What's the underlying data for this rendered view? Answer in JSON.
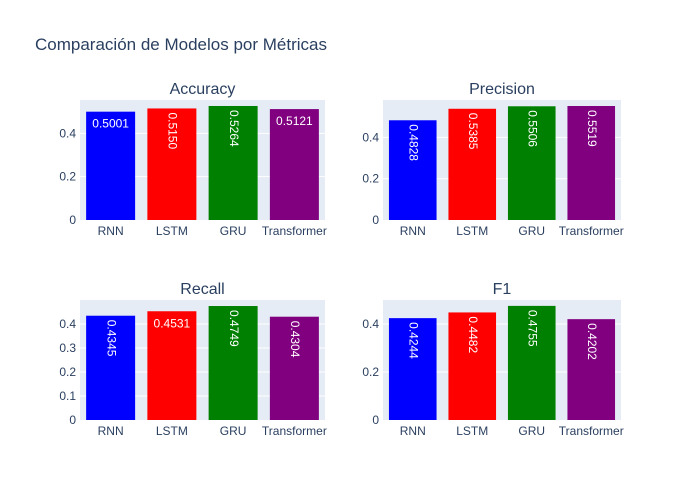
{
  "title": "Comparación de Modelos por Métricas",
  "colors": {
    "plot_bg": "#e5ecf6",
    "grid": "#ffffff",
    "text": "#2a3f5f",
    "bars": [
      "#0000ff",
      "#ff0000",
      "#008000",
      "#800080"
    ]
  },
  "chart_data": [
    {
      "type": "bar",
      "title": "Accuracy",
      "categories": [
        "RNN",
        "LSTM",
        "GRU",
        "Transformer"
      ],
      "values": [
        0.5001,
        0.515,
        0.5264,
        0.5121
      ],
      "labels": [
        "0.5001",
        "0.5150",
        "0.5264",
        "0.5121"
      ],
      "label_rotated": [
        false,
        true,
        true,
        false
      ],
      "yticks": [
        0,
        0.2,
        0.4
      ],
      "ytick_labels": [
        "0",
        "0.2",
        "0.4"
      ],
      "ylim": [
        0,
        0.554
      ]
    },
    {
      "type": "bar",
      "title": "Precision",
      "categories": [
        "RNN",
        "LSTM",
        "GRU",
        "Transformer"
      ],
      "values": [
        0.4828,
        0.5385,
        0.5506,
        0.5519
      ],
      "labels": [
        "0.4828",
        "0.5385",
        "0.5506",
        "0.5519"
      ],
      "label_rotated": [
        true,
        true,
        true,
        true
      ],
      "yticks": [
        0,
        0.2,
        0.4
      ],
      "ytick_labels": [
        "0",
        "0.2",
        "0.4"
      ],
      "ylim": [
        0,
        0.581
      ]
    },
    {
      "type": "bar",
      "title": "Recall",
      "categories": [
        "RNN",
        "LSTM",
        "GRU",
        "Transformer"
      ],
      "values": [
        0.4345,
        0.4531,
        0.4749,
        0.4304
      ],
      "labels": [
        "0.4345",
        "0.4531",
        "0.4749",
        "0.4304"
      ],
      "label_rotated": [
        true,
        false,
        true,
        true
      ],
      "yticks": [
        0,
        0.1,
        0.2,
        0.3,
        0.4
      ],
      "ytick_labels": [
        "0",
        "0.1",
        "0.2",
        "0.3",
        "0.4"
      ],
      "ylim": [
        0,
        0.5
      ]
    },
    {
      "type": "bar",
      "title": "F1",
      "categories": [
        "RNN",
        "LSTM",
        "GRU",
        "Transformer"
      ],
      "values": [
        0.4244,
        0.4482,
        0.4755,
        0.4202
      ],
      "labels": [
        "0.4244",
        "0.4482",
        "0.4755",
        "0.4202"
      ],
      "label_rotated": [
        true,
        true,
        true,
        true
      ],
      "yticks": [
        0,
        0.2,
        0.4
      ],
      "ytick_labels": [
        "0",
        "0.2",
        "0.4"
      ],
      "ylim": [
        0,
        0.5
      ]
    }
  ]
}
